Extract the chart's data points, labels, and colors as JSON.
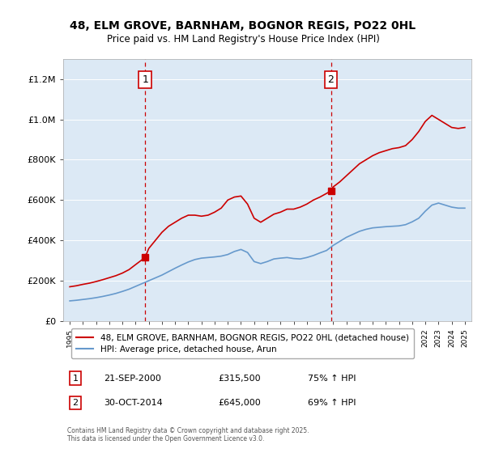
{
  "title_line1": "48, ELM GROVE, BARNHAM, BOGNOR REGIS, PO22 0HL",
  "title_line2": "Price paid vs. HM Land Registry's House Price Index (HPI)",
  "bg_color": "#dce9f5",
  "plot_bg_color": "#dce9f5",
  "fig_bg_color": "#ffffff",
  "red_color": "#cc0000",
  "blue_color": "#6699cc",
  "marker1_x": 2000.72,
  "marker1_y": 315500,
  "marker2_x": 2014.83,
  "marker2_y": 645000,
  "vline1_x": 2000.72,
  "vline2_x": 2014.83,
  "ylim": [
    0,
    1300000
  ],
  "xlim": [
    1994.5,
    2025.5
  ],
  "legend_label_red": "48, ELM GROVE, BARNHAM, BOGNOR REGIS, PO22 0HL (detached house)",
  "legend_label_blue": "HPI: Average price, detached house, Arun",
  "annotation1_label": "1",
  "annotation1_date": "21-SEP-2000",
  "annotation1_price": "£315,500",
  "annotation1_hpi": "75% ↑ HPI",
  "annotation2_label": "2",
  "annotation2_date": "30-OCT-2014",
  "annotation2_price": "£645,000",
  "annotation2_hpi": "69% ↑ HPI",
  "footer": "Contains HM Land Registry data © Crown copyright and database right 2025.\nThis data is licensed under the Open Government Licence v3.0.",
  "red_data_x": [
    1995.0,
    1995.5,
    1996.0,
    1996.5,
    1997.0,
    1997.5,
    1998.0,
    1998.5,
    1999.0,
    1999.5,
    2000.0,
    2000.72,
    2001.0,
    2001.5,
    2002.0,
    2002.5,
    2003.0,
    2003.5,
    2004.0,
    2004.5,
    2005.0,
    2005.5,
    2006.0,
    2006.5,
    2007.0,
    2007.5,
    2008.0,
    2008.5,
    2009.0,
    2009.5,
    2010.0,
    2010.5,
    2011.0,
    2011.5,
    2012.0,
    2012.5,
    2013.0,
    2013.5,
    2014.0,
    2014.83,
    2015.0,
    2015.5,
    2016.0,
    2016.5,
    2017.0,
    2017.5,
    2018.0,
    2018.5,
    2019.0,
    2019.5,
    2020.0,
    2020.5,
    2021.0,
    2021.5,
    2022.0,
    2022.5,
    2023.0,
    2023.5,
    2024.0,
    2024.5,
    2025.0
  ],
  "red_data_y": [
    170000,
    175000,
    182000,
    188000,
    196000,
    205000,
    215000,
    225000,
    238000,
    255000,
    280000,
    315500,
    360000,
    400000,
    440000,
    470000,
    490000,
    510000,
    525000,
    525000,
    520000,
    525000,
    540000,
    560000,
    600000,
    615000,
    620000,
    580000,
    510000,
    490000,
    510000,
    530000,
    540000,
    555000,
    555000,
    565000,
    580000,
    600000,
    615000,
    645000,
    665000,
    690000,
    720000,
    750000,
    780000,
    800000,
    820000,
    835000,
    845000,
    855000,
    860000,
    870000,
    900000,
    940000,
    990000,
    1020000,
    1000000,
    980000,
    960000,
    955000,
    960000
  ],
  "blue_data_x": [
    1995.0,
    1995.5,
    1996.0,
    1996.5,
    1997.0,
    1997.5,
    1998.0,
    1998.5,
    1999.0,
    1999.5,
    2000.0,
    2000.5,
    2001.0,
    2001.5,
    2002.0,
    2002.5,
    2003.0,
    2003.5,
    2004.0,
    2004.5,
    2005.0,
    2005.5,
    2006.0,
    2006.5,
    2007.0,
    2007.5,
    2008.0,
    2008.5,
    2009.0,
    2009.5,
    2010.0,
    2010.5,
    2011.0,
    2011.5,
    2012.0,
    2012.5,
    2013.0,
    2013.5,
    2014.0,
    2014.5,
    2015.0,
    2015.5,
    2016.0,
    2016.5,
    2017.0,
    2017.5,
    2018.0,
    2018.5,
    2019.0,
    2019.5,
    2020.0,
    2020.5,
    2021.0,
    2021.5,
    2022.0,
    2022.5,
    2023.0,
    2023.5,
    2024.0,
    2024.5,
    2025.0
  ],
  "blue_data_y": [
    100000,
    103000,
    107000,
    111000,
    116000,
    122000,
    129000,
    137000,
    147000,
    158000,
    172000,
    186000,
    200000,
    214000,
    228000,
    245000,
    262000,
    278000,
    293000,
    305000,
    312000,
    315000,
    318000,
    322000,
    330000,
    345000,
    355000,
    340000,
    295000,
    285000,
    295000,
    308000,
    312000,
    315000,
    310000,
    308000,
    315000,
    325000,
    338000,
    350000,
    375000,
    395000,
    415000,
    430000,
    445000,
    455000,
    462000,
    465000,
    468000,
    470000,
    472000,
    478000,
    492000,
    510000,
    545000,
    575000,
    585000,
    575000,
    565000,
    560000,
    560000
  ]
}
